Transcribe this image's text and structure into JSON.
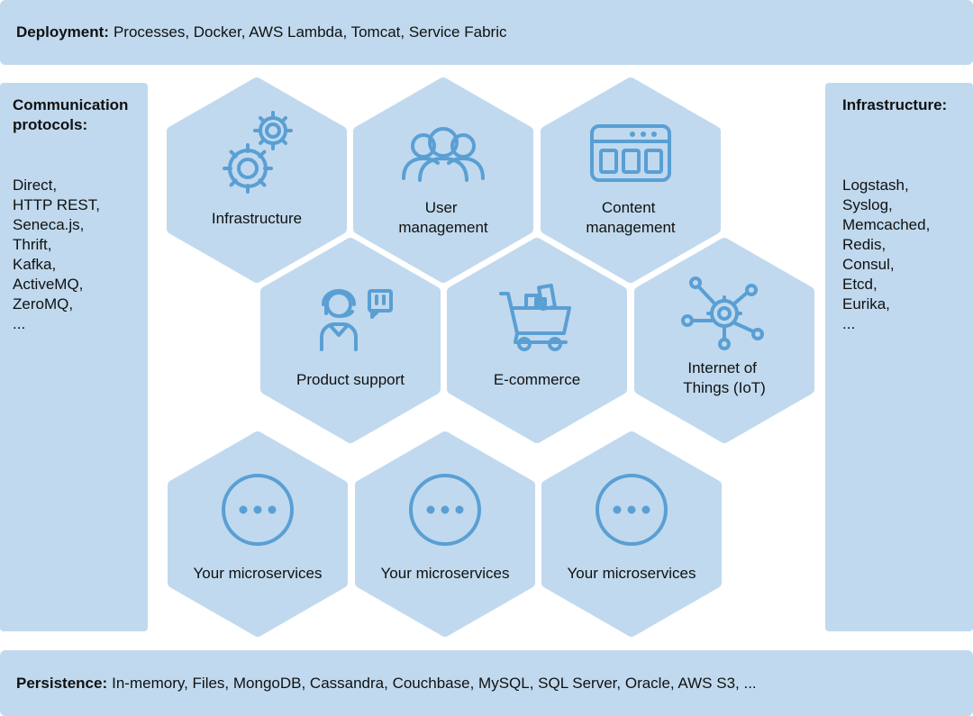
{
  "deployment": {
    "label": "Deployment:",
    "text": "Processes, Docker, AWS Lambda, Tomcat, Service Fabric"
  },
  "persistence": {
    "label": "Persistence:",
    "text": "In-memory, Files, MongoDB, Cassandra, Couchbase, MySQL, SQL Server, Oracle, AWS S3, ..."
  },
  "communication": {
    "title_lines": [
      "Communication",
      "protocols:"
    ],
    "items": [
      "Direct,",
      "HTTP REST,",
      "Seneca.js,",
      "Thrift,",
      "Kafka,",
      "ActiveMQ,",
      "ZeroMQ,",
      "..."
    ]
  },
  "infrastructure_panel": {
    "title": "Infrastructure:",
    "items": [
      "Logstash,",
      "Syslog,",
      "Memcached,",
      "Redis,",
      "Consul,",
      "Etcd,",
      "Eurika,",
      "..."
    ]
  },
  "hexagons": [
    {
      "icon": "gears-icon",
      "lines": [
        "Infrastructure"
      ]
    },
    {
      "icon": "users-icon",
      "lines": [
        "User",
        "management"
      ]
    },
    {
      "icon": "browser-window-icon",
      "lines": [
        "Content",
        "management"
      ]
    },
    {
      "icon": "support-agent-icon",
      "lines": [
        "Product support"
      ]
    },
    {
      "icon": "shopping-cart-icon",
      "lines": [
        "E-commerce"
      ]
    },
    {
      "icon": "iot-network-icon",
      "lines": [
        "Internet of",
        "Things (IoT)"
      ]
    },
    {
      "icon": "more-icon",
      "lines": [
        "Your microservices"
      ]
    },
    {
      "icon": "more-icon",
      "lines": [
        "Your microservices"
      ]
    },
    {
      "icon": "more-icon",
      "lines": [
        "Your microservices"
      ]
    }
  ],
  "colors": {
    "panel": "#c0d9ee",
    "hex": "#c0d9ee",
    "icon": "#5a9fd4"
  }
}
